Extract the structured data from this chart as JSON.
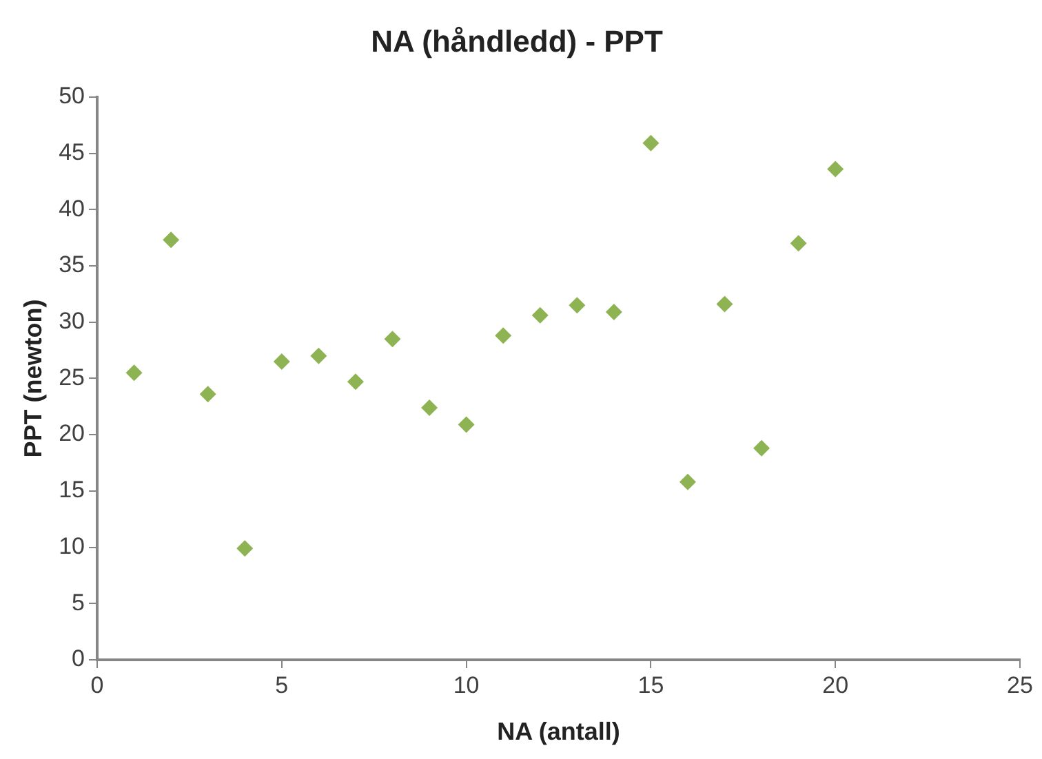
{
  "chart_data": {
    "type": "scatter",
    "title": "NA (håndledd) - PPT",
    "xlabel": "NA (antall)",
    "ylabel": "PPT (newton)",
    "x": [
      1,
      2,
      3,
      4,
      5,
      6,
      7,
      8,
      9,
      10,
      11,
      12,
      13,
      14,
      15,
      16,
      17,
      18,
      19,
      20
    ],
    "series": [
      {
        "color": "#8db352",
        "values": [
          25.5,
          37.3,
          23.6,
          9.9,
          26.5,
          27.0,
          24.7,
          28.5,
          22.4,
          20.9,
          28.8,
          30.6,
          31.5,
          30.9,
          45.9,
          15.8,
          31.6,
          18.8,
          37.0,
          43.6
        ]
      }
    ],
    "xlim": [
      0,
      25
    ],
    "xticks": [
      0,
      5,
      10,
      15,
      20,
      25
    ],
    "ylim": [
      0,
      50
    ],
    "yticks": [
      0,
      5,
      10,
      15,
      20,
      25,
      30,
      35,
      40,
      45,
      50
    ],
    "grid": false,
    "legend": false,
    "marker": "diamond"
  }
}
